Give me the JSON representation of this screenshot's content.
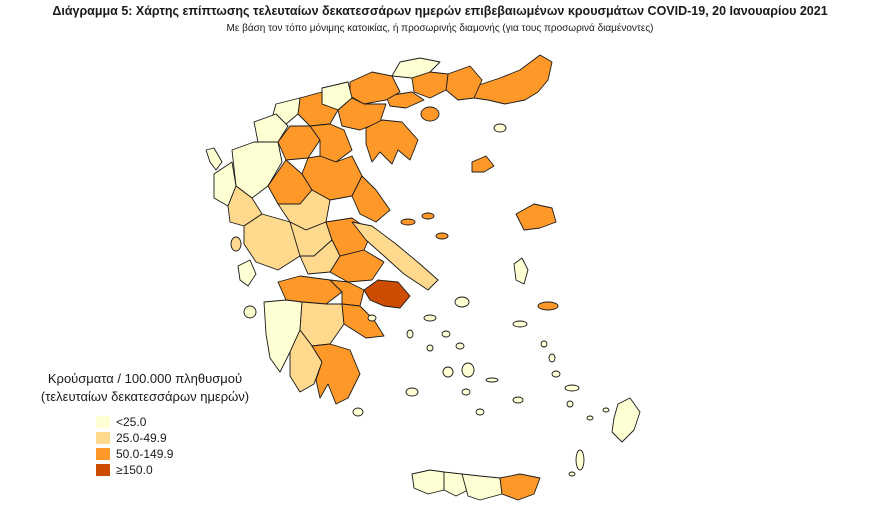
{
  "header": {
    "title": "Διάγραμμα 5: Χάρτης επίπτωσης τελευταίων δεκατεσσάρων ημερών επιβεβαιωμένων κρουσμάτων COVID-19, 20 Ιανουαρίου 2021",
    "subtitle": "Με βάση τον τόπο μόνιμης κατοικίας, ή προσωρινής διαμονής (για τους προσωρινά διαμένοντες)"
  },
  "legend": {
    "title_line1": "Κρούσματα / 100.000 πληθυσμού",
    "title_line2": "(τελευταίων δεκατεσσάρων ημερών)",
    "items": [
      {
        "label": "<25.0",
        "color": "#ffffd4"
      },
      {
        "label": "25.0-49.9",
        "color": "#fed98e"
      },
      {
        "label": "50.0-149.9",
        "color": "#fe9929"
      },
      {
        "label": "≥150.0",
        "color": "#cc4c02"
      }
    ]
  },
  "map": {
    "regions": [
      {
        "name": "Evros",
        "level": "50.0-149.9"
      },
      {
        "name": "Rodopi",
        "level": "50.0-149.9"
      },
      {
        "name": "Xanthi",
        "level": "50.0-149.9"
      },
      {
        "name": "Drama",
        "level": "<25.0"
      },
      {
        "name": "Kavala",
        "level": "50.0-149.9"
      },
      {
        "name": "Serres",
        "level": "50.0-149.9"
      },
      {
        "name": "Kilkis",
        "level": "<25.0"
      },
      {
        "name": "Thessaloniki",
        "level": "50.0-149.9"
      },
      {
        "name": "Chalkidiki",
        "level": "50.0-149.9"
      },
      {
        "name": "Pella",
        "level": "50.0-149.9"
      },
      {
        "name": "Florina",
        "level": "<25.0"
      },
      {
        "name": "Kastoria",
        "level": "<25.0"
      },
      {
        "name": "Kozani",
        "level": "50.0-149.9"
      },
      {
        "name": "Larisa",
        "level": "50.0-149.9"
      },
      {
        "name": "Magnesia",
        "level": "50.0-149.9"
      },
      {
        "name": "Ioannina",
        "level": "<25.0"
      },
      {
        "name": "Thesprotia",
        "level": "<25.0"
      },
      {
        "name": "Trikala",
        "level": "50.0-149.9"
      },
      {
        "name": "Karditsa",
        "level": "25.0-49.9"
      },
      {
        "name": "Aitoloakarnania",
        "level": "25.0-49.9"
      },
      {
        "name": "Fthiotida",
        "level": "50.0-149.9"
      },
      {
        "name": "Evia",
        "level": "25.0-49.9"
      },
      {
        "name": "Attica",
        "level": "≥150.0"
      },
      {
        "name": "Achaia",
        "level": "50.0-149.9"
      },
      {
        "name": "Ilia",
        "level": "<25.0"
      },
      {
        "name": "Arkadia",
        "level": "25.0-49.9"
      },
      {
        "name": "Argolida",
        "level": "50.0-149.9"
      },
      {
        "name": "Messinia",
        "level": "25.0-49.9"
      },
      {
        "name": "Lakonia",
        "level": "50.0-149.9"
      },
      {
        "name": "Lesvos",
        "level": "50.0-149.9"
      },
      {
        "name": "Chios",
        "level": "<25.0"
      },
      {
        "name": "Samos",
        "level": "50.0-149.9"
      },
      {
        "name": "Chania",
        "level": "<25.0"
      },
      {
        "name": "Rethymno",
        "level": "<25.0"
      },
      {
        "name": "Heraklion",
        "level": "<25.0"
      },
      {
        "name": "Lasithi",
        "level": "50.0-149.9"
      },
      {
        "name": "Rhodes",
        "level": "<25.0"
      },
      {
        "name": "Corfu",
        "level": "<25.0"
      },
      {
        "name": "Kefalonia",
        "level": "<25.0"
      },
      {
        "name": "Zakynthos",
        "level": "<25.0"
      },
      {
        "name": "Thasos",
        "level": "50.0-149.9"
      },
      {
        "name": "Samothraki",
        "level": "<25.0"
      },
      {
        "name": "Lemnos",
        "level": "50.0-149.9"
      },
      {
        "name": "Sporades",
        "level": "50.0-149.9"
      },
      {
        "name": "Skyros",
        "level": "<25.0"
      },
      {
        "name": "Cyclades",
        "level": "<25.0"
      },
      {
        "name": "Dodecanese",
        "level": "<25.0"
      }
    ]
  }
}
